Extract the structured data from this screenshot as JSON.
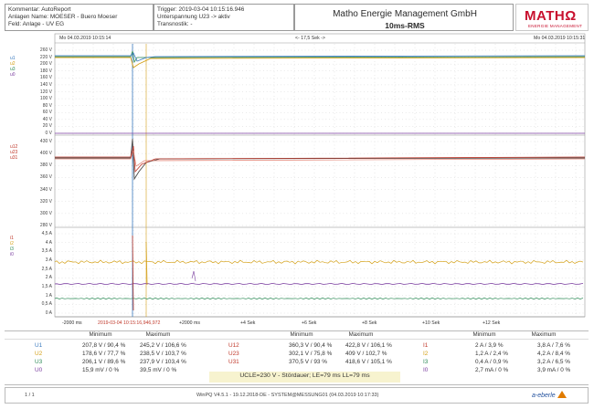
{
  "header": {
    "left": {
      "line1": "Kommentar: AutoReport",
      "line2": "Anlagen Name: MOESER - Buero Moeser",
      "line3": "Feld: Anlage - UV EG"
    },
    "middle": {
      "line1": "Trigger: 2019-03-04 10:15:16.946",
      "line2": "Unterspannung U23 -> aktiv",
      "line3": "Transnostik: -"
    },
    "company": "Matho Energie Management GmbH",
    "mode": "10ms-RMS",
    "logo_text": "MATHΩ",
    "logo_sub": "ENERGIE MANAGEMENT"
  },
  "timebar": {
    "left": "Mo 04.03.2019 10:15:14",
    "center": "<- 17,5 Sek ->",
    "right": "Mo 04.03.2019 10:15:31"
  },
  "panel1": {
    "series_labels": [
      "u1",
      "u2",
      "u3",
      "u0"
    ],
    "y_ticks": [
      "260 V",
      "220 V",
      "200 V",
      "180 V",
      "160 V",
      "140 V",
      "120 V",
      "100 V",
      "80 V",
      "60 V",
      "40 V",
      "20 V",
      "0 V"
    ]
  },
  "panel2": {
    "series_labels": [
      "u12",
      "u23",
      "u31"
    ],
    "y_ticks": [
      "430 V",
      "400 V",
      "380 V",
      "360 V",
      "340 V",
      "320 V",
      "300 V",
      "280 V"
    ]
  },
  "panel3": {
    "series_labels": [
      "i1",
      "i2",
      "i3",
      "i0"
    ],
    "y_ticks": [
      "4,5 A",
      "4 A",
      "3,5 A",
      "3 A",
      "2,5 A",
      "2 A",
      "1,5 A",
      "1 A",
      "0,5 A",
      "0 A"
    ]
  },
  "xaxis": {
    "ticks": [
      "-2000 ms",
      "2019-03-04 10:15:16,946,972",
      "+2000 ms",
      "+4 Sek",
      "+6 Sek",
      "+8 Sek",
      "+10 Sek",
      "+12 Sek"
    ]
  },
  "table": {
    "col_min": "Minimum",
    "col_max": "Maximum",
    "voltages": [
      {
        "name": "U1",
        "min": "207,8 V / 90,4 %",
        "max": "245,2 V / 106,6 %"
      },
      {
        "name": "U2",
        "min": "178,6 V / 77,7 %",
        "max": "238,5 V / 103,7 %"
      },
      {
        "name": "U3",
        "min": "206,1 V / 89,6 %",
        "max": "237,9 V / 103,4 %"
      },
      {
        "name": "U0",
        "min": "15,9 mV / 0 %",
        "max": "39,5 mV / 0 %"
      }
    ],
    "line_voltages": [
      {
        "name": "U12",
        "min": "360,3 V / 90,4 %",
        "max": "422,8 V / 106,1 %"
      },
      {
        "name": "U23",
        "min": "302,1 V / 75,8 %",
        "max": "409 V / 102,7 %"
      },
      {
        "name": "U31",
        "min": "370,5 V / 93 %",
        "max": "418,6 V / 105,1 %"
      }
    ],
    "currents": [
      {
        "name": "I1",
        "min": "2 A / 3,9 %",
        "max": "3,8 A / 7,6 %"
      },
      {
        "name": "I2",
        "min": "1,2 A / 2,4 %",
        "max": "4,2 A / 8,4 %"
      },
      {
        "name": "I3",
        "min": "0,4 A / 0,9 %",
        "max": "3,2 A / 6,5 %"
      },
      {
        "name": "I0",
        "min": "2,7 mA / 0 %",
        "max": "3,9 mA / 0 %"
      }
    ],
    "summary": "UCLE=230 V - Stördauer; LE=79 ms LL=79 ms"
  },
  "footer": {
    "page": "1 / 1",
    "info": "WinPQ V4.5.1 - 19.12.2018-DE - SYSTEM@MESSUNG01 (04.03.2019 10:17:33)",
    "brand": "a-eberle"
  },
  "colors": {
    "series1": "#3a7abf",
    "series2": "#d4a017",
    "series3": "#2e8b57",
    "series0": "#7b3fa0",
    "red": "#c0392b",
    "dark": "#4a4a4a",
    "summary_bg": "#f7f3cf"
  }
}
